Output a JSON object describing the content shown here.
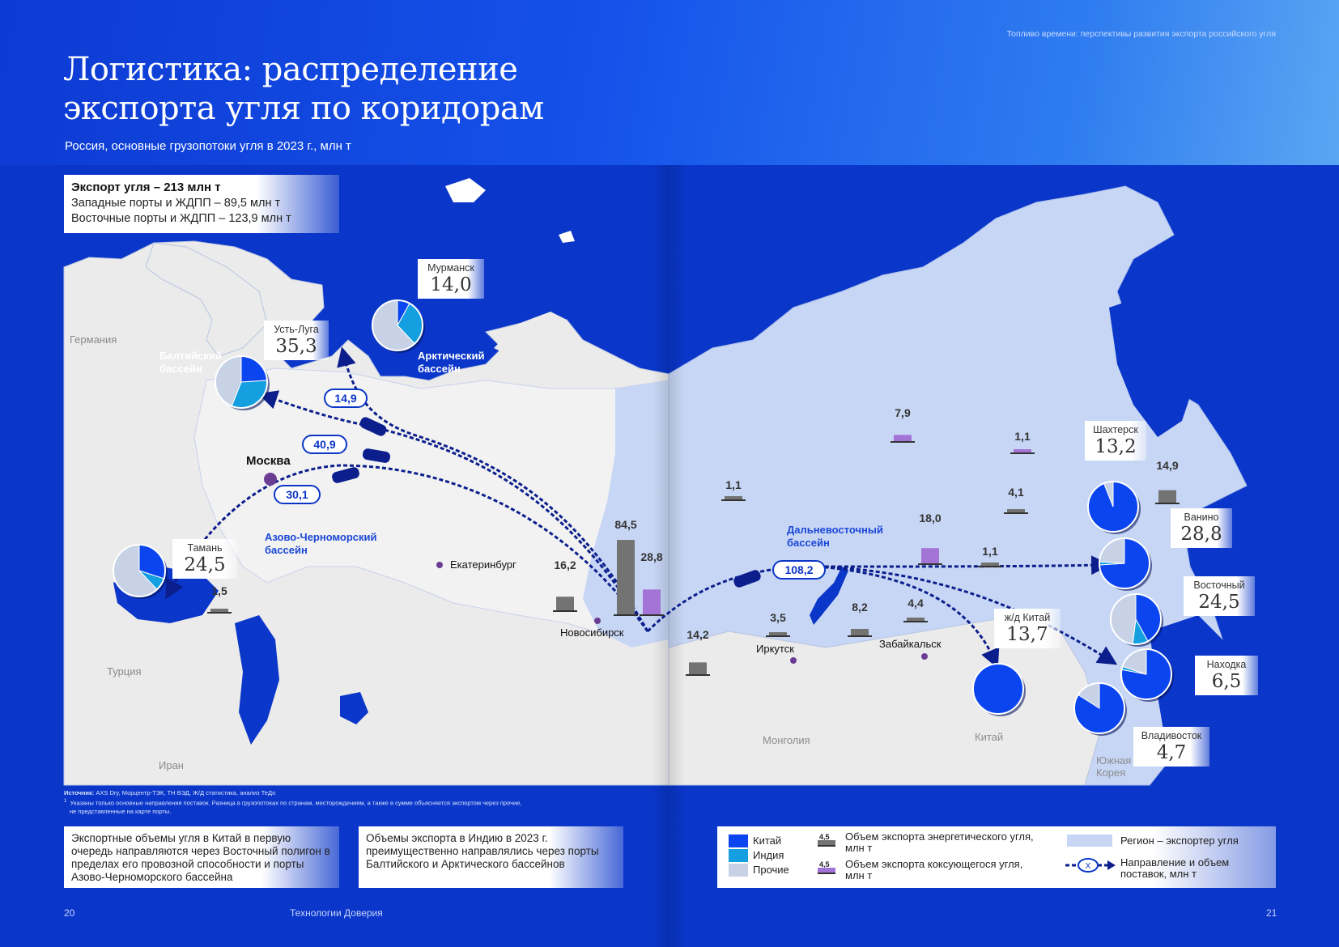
{
  "header": {
    "top_note": "Топливо времени: перспективы развития экспорта российского угля",
    "title_line1": "Логистика: распределение",
    "title_line2": "экспорта угля по коридорам",
    "subtitle": "Россия, основные грузопотоки угля в 2023 г., млн т"
  },
  "summary": {
    "title": "Экспорт угля – 213 млн т",
    "line1": "Западные порты и ЖДПП – 89,5 млн т",
    "line2": "Восточные порты и ЖДПП – 123,9 млн т"
  },
  "colors": {
    "background": "#0a36c9",
    "exporter_region": "#c7d6f5",
    "land": "#ebebeb",
    "china": "#0a45f0",
    "india": "#139fe0",
    "other": "#c7d2e6",
    "energy_coal": "#737373",
    "coking_coal": "#a374d6"
  },
  "ports": [
    {
      "id": "murmansk",
      "name": "Мурманск",
      "value": "14,0",
      "shares": {
        "china": 0.08,
        "india": 0.3,
        "other": 0.62
      }
    },
    {
      "id": "ust_luga",
      "name": "Усть-Луга",
      "value": "35,3",
      "shares": {
        "china": 0.24,
        "india": 0.32,
        "other": 0.44
      }
    },
    {
      "id": "taman",
      "name": "Тамань",
      "value": "24,5",
      "shares": {
        "china": 0.3,
        "india": 0.08,
        "other": 0.62
      }
    },
    {
      "id": "shakhtersk",
      "name": "Шахтерск",
      "value": "13,2",
      "shares": {
        "china": 0.94,
        "india": 0.0,
        "other": 0.06
      }
    },
    {
      "id": "vanino",
      "name": "Ванино",
      "value": "28,8",
      "shares": {
        "china": 0.74,
        "india": 0.02,
        "other": 0.24
      }
    },
    {
      "id": "vostochny",
      "name": "Восточный",
      "value": "24,5",
      "shares": {
        "china": 0.42,
        "india": 0.1,
        "other": 0.48
      }
    },
    {
      "id": "nakhodka",
      "name": "Находка",
      "value": "6,5",
      "shares": {
        "china": 0.78,
        "india": 0.02,
        "other": 0.2
      }
    },
    {
      "id": "vladivostok",
      "name": "Владивосток",
      "value": "4,7",
      "shares": {
        "china": 0.84,
        "india": 0.0,
        "other": 0.16
      }
    },
    {
      "id": "zd_china",
      "name": "ж/д Китай",
      "value": "13,7",
      "shares": {
        "china": 1.0,
        "india": 0.0,
        "other": 0.0
      }
    }
  ],
  "flows": [
    {
      "value": "14,9"
    },
    {
      "value": "40,9"
    },
    {
      "value": "30,1"
    },
    {
      "value": "108,2"
    }
  ],
  "bars": [
    {
      "value": "1,5",
      "amount": 1.5,
      "type": "energy"
    },
    {
      "value": "16,2",
      "amount": 16.2,
      "type": "energy"
    },
    {
      "value": "84,5",
      "amount": 84.5,
      "type": "energy"
    },
    {
      "value": "28,8",
      "amount": 28.8,
      "type": "coking"
    },
    {
      "value": "14,2",
      "amount": 14.2,
      "type": "energy"
    },
    {
      "value": "1,1",
      "amount": 1.1,
      "type": "energy"
    },
    {
      "value": "3,5",
      "amount": 3.5,
      "type": "energy"
    },
    {
      "value": "7,9",
      "amount": 7.9,
      "type": "coking"
    },
    {
      "value": "8,2",
      "amount": 8.2,
      "type": "energy"
    },
    {
      "value": "4,4",
      "amount": 4.4,
      "type": "energy"
    },
    {
      "value": "18,0",
      "amount": 18.0,
      "type": "coking"
    },
    {
      "value": "1,1",
      "amount": 1.1,
      "type": "energy"
    },
    {
      "value": "1,1",
      "amount": 1.1,
      "type": "coking"
    },
    {
      "value": "4,1",
      "amount": 4.1,
      "type": "energy"
    },
    {
      "value": "14,9",
      "amount": 14.9,
      "type": "energy"
    }
  ],
  "cities": {
    "moscow": "Москва",
    "ekaterinburg": "Екатеринбург",
    "novosibirsk": "Новосибирск",
    "irkutsk": "Иркутск",
    "zabaikalsk": "Забайкальск"
  },
  "basins": {
    "baltic_1": "Балтийский",
    "baltic_2": "бассейн",
    "arctic_1": "Арктический",
    "arctic_2": "бассейн",
    "azov_1": "Азово-Черноморский",
    "azov_2": "бассейн",
    "far_east_1": "Дальневосточный",
    "far_east_2": "бассейн"
  },
  "countries": {
    "germany": "Германия",
    "turkey": "Турция",
    "iran": "Иран",
    "mongolia": "Монголия",
    "china": "Китай",
    "korea_1": "Южная",
    "korea_2": "Корея"
  },
  "sources": {
    "label": "Источник:",
    "text": " AXS Dry, Морцентр-ТЭК, ТН ВЭД, Ж/Д статистика, анализ ТеДо",
    "note_mark": "1",
    "note_line1": "Указаны только основные направления поставок. Разница в грузопотоках по странам, месторождениям, а также в сумме объясняется экспортом через прочие,",
    "note_line2": "не представленные на карте порты."
  },
  "notes": {
    "box1": "Экспортные объемы угля в Китай в первую очередь направляются через Восточный полигон в пределах его провозной способности и порты Азово-Черноморского бассейна",
    "box2": "Объемы экспорта в Индию в 2023 г. преимущественно направлялись через порты Балтийского и Арктического бассейнов"
  },
  "legend": {
    "china": "Китай",
    "india": "Индия",
    "other": "Прочие",
    "sample_value": "4,5",
    "energy_1": "Объем экспорта энергетического угля,",
    "energy_2": "млн т",
    "coking_1": "Объем экспорта коксующегося угля,",
    "coking_2": "млн т",
    "region": "Регион – экспортер угля",
    "direction_1": "Направление и объем",
    "direction_2": "поставок, млн т",
    "direction_symbol": "X"
  },
  "footer": {
    "page_left": "20",
    "center": "Технологии Доверия",
    "page_right": "21"
  }
}
